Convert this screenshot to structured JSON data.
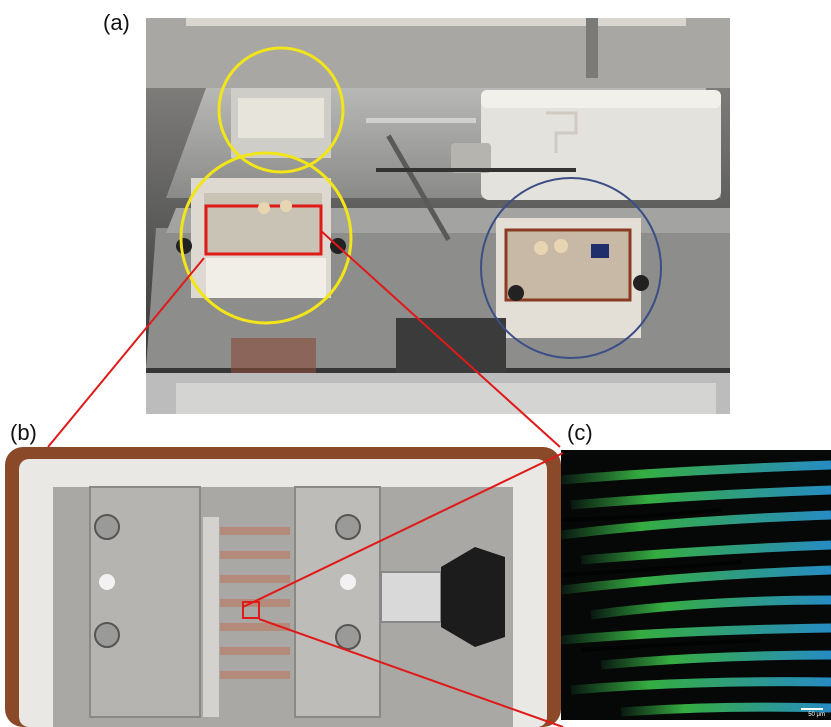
{
  "figure": {
    "panels": [
      {
        "label": "(a)"
      },
      {
        "label": "(b)"
      },
      {
        "label": "(c)"
      }
    ],
    "scale_bar": "50 μm"
  },
  "colors": {
    "highlight_circle": "#f2e51a",
    "other_circle": "#3b4f86",
    "zoom_lines": "#e01919",
    "tray_rim": "#8a4a2a",
    "microscopy_green": "#3bbf48",
    "microscopy_blue": "#2a9ad9"
  }
}
